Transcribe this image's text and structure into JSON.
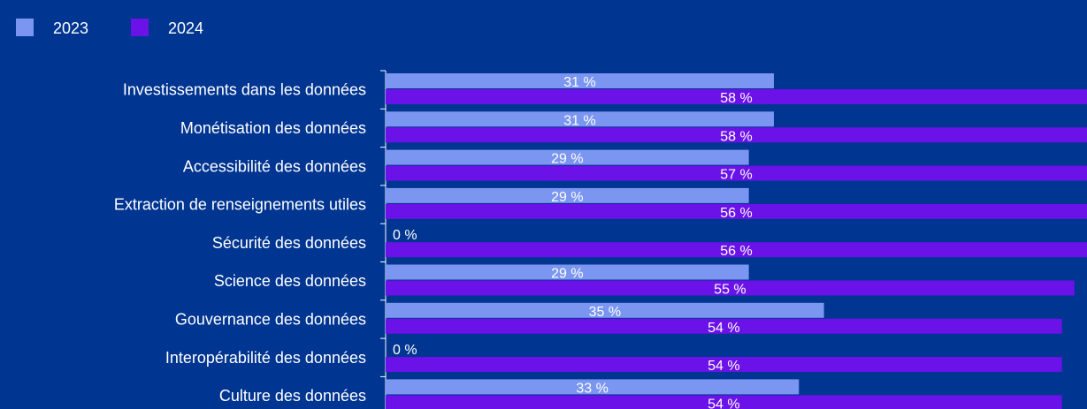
{
  "chart_data": {
    "type": "bar",
    "orientation": "horizontal",
    "categories": [
      "Investissements dans les données",
      "Monétisation des données",
      "Accessibilité des données",
      "Extraction de renseignements utiles",
      "Sécurité des données",
      "Science des données",
      "Gouvernance des données",
      "Interopérabilité des données",
      "Culture des données"
    ],
    "series": [
      {
        "name": "2023",
        "color": "#7b96f0",
        "values": [
          31,
          31,
          29,
          29,
          0,
          29,
          35,
          0,
          33
        ],
        "labels": [
          "31 %",
          "31 %",
          "29 %",
          "29 %",
          "0 %",
          "29 %",
          "35 %",
          "0 %",
          "33 %"
        ]
      },
      {
        "name": "2024",
        "color": "#6a12e8",
        "values": [
          58,
          58,
          57,
          56,
          56,
          55,
          54,
          54,
          54
        ],
        "labels": [
          "58 %",
          "58 %",
          "57 %",
          "56 %",
          "56 %",
          "55 %",
          "54 %",
          "54 %",
          "54 %"
        ]
      }
    ],
    "xlim": [
      0,
      56
    ],
    "grid": false,
    "legend_position": "top-left",
    "background_color": "#003591"
  }
}
